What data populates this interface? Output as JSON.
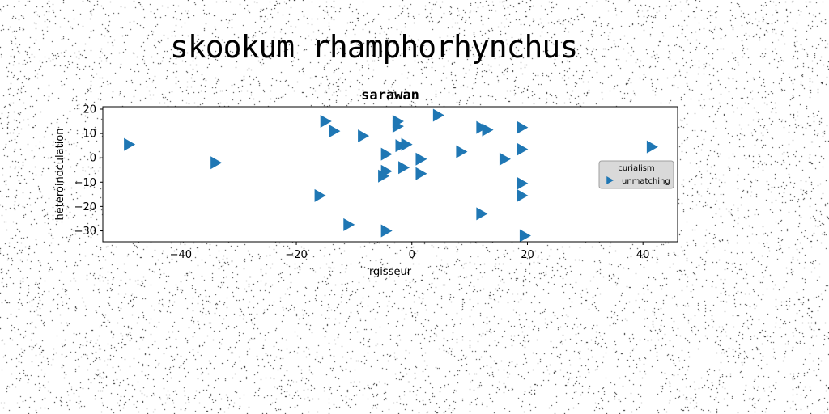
{
  "page": {
    "suptitle": "skookum rhamphorhynchus"
  },
  "chart_data": {
    "type": "scatter",
    "title": "sarawan",
    "xlabel": "rgisseur",
    "ylabel": "heteroinoculation",
    "xlim": [
      -53.5,
      46
    ],
    "ylim": [
      -34.5,
      21
    ],
    "xticks": [
      -40,
      -20,
      0,
      20,
      40
    ],
    "yticks": [
      -30,
      -20,
      -10,
      0,
      10,
      20
    ],
    "xtick_labels": [
      "−40",
      "−20",
      "0",
      "20",
      "40"
    ],
    "ytick_labels": [
      "−30",
      "−20",
      "−10",
      "0",
      "10",
      "20"
    ],
    "grid": false,
    "legend": {
      "title": "curialism",
      "placement": "center-right",
      "entries": [
        "unmatching"
      ]
    },
    "series": [
      {
        "name": "unmatching",
        "marker": "triangle-right",
        "color": "#1f77b4",
        "points": [
          {
            "x": -49,
            "y": 5.5
          },
          {
            "x": -34,
            "y": -2
          },
          {
            "x": -16,
            "y": -15.5
          },
          {
            "x": -15,
            "y": 15
          },
          {
            "x": -13.5,
            "y": 11
          },
          {
            "x": -11,
            "y": -27.5
          },
          {
            "x": -8.5,
            "y": 9
          },
          {
            "x": -5,
            "y": -7.5
          },
          {
            "x": -4.5,
            "y": -5.5
          },
          {
            "x": -4.5,
            "y": 1.5
          },
          {
            "x": -4.5,
            "y": -30
          },
          {
            "x": -2.5,
            "y": 13
          },
          {
            "x": -2.5,
            "y": 15
          },
          {
            "x": -2,
            "y": 5
          },
          {
            "x": -1.5,
            "y": -4
          },
          {
            "x": -1,
            "y": 5.5
          },
          {
            "x": 1.5,
            "y": -0.5
          },
          {
            "x": 1.5,
            "y": -6.5
          },
          {
            "x": 4.5,
            "y": 17.5
          },
          {
            "x": 8.5,
            "y": 2.5
          },
          {
            "x": 12,
            "y": 12.5
          },
          {
            "x": 12,
            "y": -23
          },
          {
            "x": 13,
            "y": 11.5
          },
          {
            "x": 16,
            "y": -0.5
          },
          {
            "x": 19,
            "y": 12.5
          },
          {
            "x": 19,
            "y": 3.5
          },
          {
            "x": 19,
            "y": -10.5
          },
          {
            "x": 19,
            "y": -15.5
          },
          {
            "x": 19.5,
            "y": -32
          },
          {
            "x": 41.5,
            "y": 4.5
          }
        ]
      }
    ]
  }
}
